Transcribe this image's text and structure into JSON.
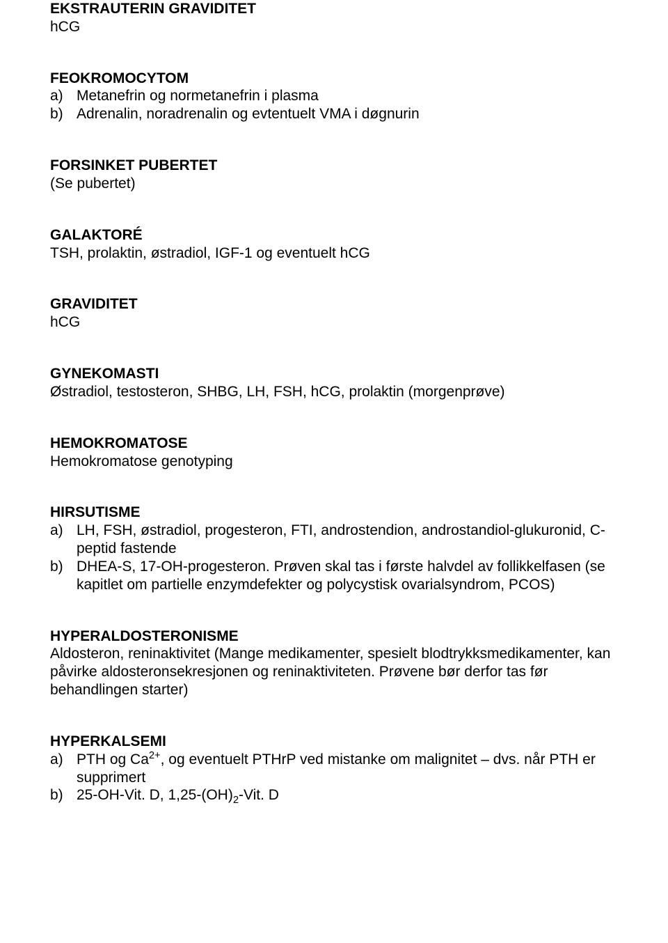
{
  "sections": {
    "ekstrauterin": {
      "heading": "EKSTRAUTERIN GRAVIDITET",
      "line1": "hCG"
    },
    "feokromocytom": {
      "heading": "FEOKROMOCYTOM",
      "items": [
        {
          "marker": "a)",
          "text": "Metanefrin og normetanefrin i plasma"
        },
        {
          "marker": "b)",
          "text": "Adrenalin, noradrenalin og evtentuelt VMA i døgnurin"
        }
      ]
    },
    "forsinket": {
      "heading": "FORSINKET PUBERTET",
      "line1": "(Se pubertet)"
    },
    "galaktore": {
      "heading": "GALAKTORÉ",
      "line1": "TSH, prolaktin, østradiol, IGF-1 og eventuelt hCG"
    },
    "graviditet": {
      "heading": "GRAVIDITET",
      "line1": "hCG"
    },
    "gynekomasti": {
      "heading": "GYNEKOMASTI",
      "line1": "Østradiol, testosteron, SHBG, LH, FSH, hCG, prolaktin (morgenprøve)"
    },
    "hemokromatose": {
      "heading": "HEMOKROMATOSE",
      "line1": "Hemokromatose genotyping"
    },
    "hirsutisme": {
      "heading": "HIRSUTISME",
      "items": [
        {
          "marker": "a)",
          "text": "LH, FSH, østradiol, progesteron, FTI, androstendion, androstandiol-glukuronid, C-peptid fastende"
        },
        {
          "marker": "b)",
          "text": "DHEA-S, 17-OH-progesteron. Prøven skal tas i første halvdel av follikkelfasen (se kapitlet om partielle enzymdefekter og polycystisk ovarialsyndrom, PCOS)"
        }
      ]
    },
    "hyperaldosteronisme": {
      "heading": "HYPERALDOSTERONISME",
      "line1": "Aldosteron, reninaktivitet (Mange medikamenter, spesielt blodtrykksmedikamenter, kan påvirke aldosteronsekresjonen og reninaktiviteten. Prøvene bør derfor tas før behandlingen starter)"
    },
    "hyperkalsemi": {
      "heading": "HYPERKALSEMI",
      "items": [
        {
          "marker": "a)",
          "pre": "PTH og Ca",
          "sup": "2+",
          "post": ", og eventuelt PTHrP ved mistanke om malignitet – dvs. når PTH er supprimert"
        },
        {
          "marker": "b)",
          "pre": "25-OH-Vit. D, 1,25-(OH)",
          "sub": "2",
          "post": "-Vit. D"
        }
      ]
    }
  }
}
